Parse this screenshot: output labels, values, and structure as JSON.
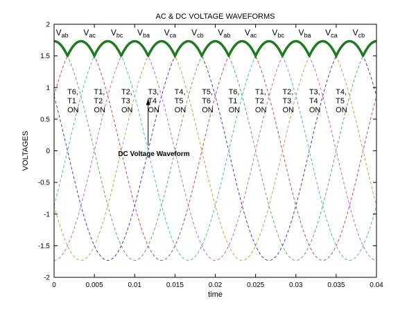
{
  "chart_data": {
    "type": "line",
    "title": "AC & DC VOLTAGE WAVEFORMS",
    "xlabel": "time",
    "ylabel": "VOLTAGES",
    "xlim": [
      0,
      0.04
    ],
    "ylim": [
      -2,
      2
    ],
    "x_ticks": [
      "0",
      "0.005",
      "0.01",
      "0.015",
      "0.02",
      "0.025",
      "0.03",
      "0.035",
      "0.04"
    ],
    "y_ticks": [
      "2",
      "1.5",
      "1",
      "0.5",
      "0",
      "-0.5",
      "-1",
      "-1.5",
      "-2"
    ],
    "grid": false,
    "frequency_hz": 50,
    "amplitude": 1.732,
    "ac_series": [
      {
        "name": "Vab",
        "phase_deg": 30,
        "color": "#c84848"
      },
      {
        "name": "Vac",
        "phase_deg": 90,
        "color": "#50b050"
      },
      {
        "name": "Vbc",
        "phase_deg": 150,
        "color": "#3838c8"
      },
      {
        "name": "Vba",
        "phase_deg": 210,
        "color": "#c8a040"
      },
      {
        "name": "Vca",
        "phase_deg": 270,
        "color": "#c860c8"
      },
      {
        "name": "Vcb",
        "phase_deg": 330,
        "color": "#40b8c8"
      }
    ],
    "dc_series": {
      "name": "DC Voltage Waveform",
      "color": "#1f7a1f"
    },
    "peak_labels": [
      {
        "main": "V",
        "sub": "ab",
        "x": 0.001
      },
      {
        "main": "V",
        "sub": "ac",
        "x": 0.0044
      },
      {
        "main": "V",
        "sub": "bc",
        "x": 0.0078
      },
      {
        "main": "V",
        "sub": "ba",
        "x": 0.0111
      },
      {
        "main": "V",
        "sub": "ca",
        "x": 0.0144
      },
      {
        "main": "V",
        "sub": "cb",
        "x": 0.0178
      },
      {
        "main": "V",
        "sub": "ab",
        "x": 0.0211
      },
      {
        "main": "V",
        "sub": "ac",
        "x": 0.0244
      },
      {
        "main": "V",
        "sub": "bc",
        "x": 0.0278
      },
      {
        "main": "V",
        "sub": "ba",
        "x": 0.0311
      },
      {
        "main": "V",
        "sub": "ca",
        "x": 0.0344
      },
      {
        "main": "V",
        "sub": "cb",
        "x": 0.0378
      }
    ],
    "thyristor_labels": [
      {
        "line1": "T6,",
        "line2": "T1",
        "line3": "ON",
        "x": 0.0025
      },
      {
        "line1": "T1,",
        "line2": "T2",
        "line3": "ON",
        "x": 0.0058
      },
      {
        "line1": "T2,",
        "line2": "T3",
        "line3": "ON",
        "x": 0.0092
      },
      {
        "line1": "T3,",
        "line2": "T4",
        "line3": "ON",
        "x": 0.0125
      },
      {
        "line1": "T4,",
        "line2": "T5",
        "line3": "ON",
        "x": 0.0158
      },
      {
        "line1": "T5,",
        "line2": "T6",
        "line3": "ON",
        "x": 0.0192
      },
      {
        "line1": "T6,",
        "line2": "T1",
        "line3": "ON",
        "x": 0.0225
      },
      {
        "line1": "T1,",
        "line2": "T2",
        "line3": "ON",
        "x": 0.0258
      },
      {
        "line1": "T2,",
        "line2": "T3",
        "line3": "ON",
        "x": 0.0292
      },
      {
        "line1": "T3,",
        "line2": "T4",
        "line3": "ON",
        "x": 0.0325
      },
      {
        "line1": "T4,",
        "line2": "T5",
        "line3": "ON",
        "x": 0.0358
      }
    ],
    "annotation": {
      "text": "DC Voltage Waveform",
      "tip_x": 0.01167,
      "tip_y": 0.866,
      "text_x": 0.0116,
      "text_y": 0.0
    }
  }
}
